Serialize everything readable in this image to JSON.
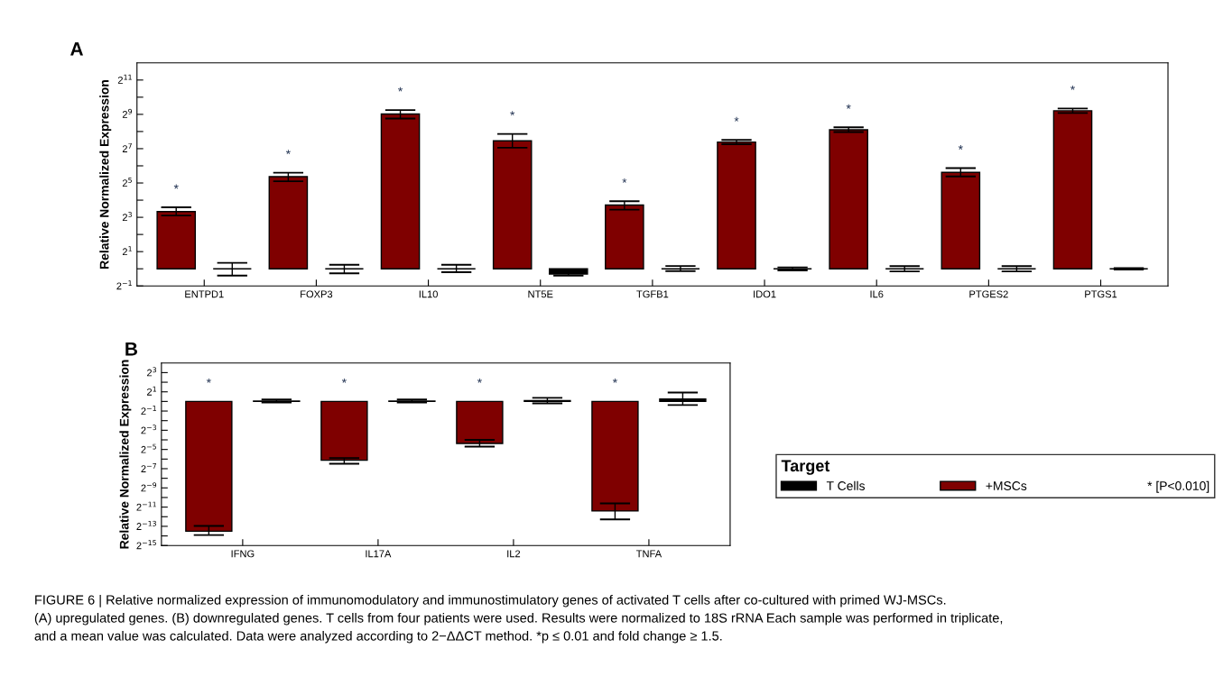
{
  "chart_data": [
    {
      "type": "bar",
      "title": "A",
      "ylabel": "Relative Normalized Expression",
      "log": true,
      "grid": false,
      "categories": [
        "ENTPD1",
        "FOXP3",
        "IL10",
        "NT5E",
        "TGFB1",
        "IDO1",
        "IL6",
        "PTGES2",
        "PTGS1"
      ],
      "ylim": [
        0.5,
        4096
      ],
      "yticks": [
        {
          "value": 0.5,
          "label": "2$^{−1}$"
        },
        {
          "value": 1,
          "label": null
        },
        {
          "value": 2,
          "label": "2$^{1}$"
        },
        {
          "value": 4,
          "label": null
        },
        {
          "value": 8,
          "label": "2$^{3}$"
        },
        {
          "value": 16,
          "label": null
        },
        {
          "value": 32,
          "label": "2$^{5}$"
        },
        {
          "value": 64,
          "label": null
        },
        {
          "value": 128,
          "label": "2$^{7}$"
        },
        {
          "value": 256,
          "label": null
        },
        {
          "value": 512,
          "label": "2$^{9}$"
        },
        {
          "value": 1024,
          "label": null
        },
        {
          "value": 2048,
          "label": "2$^{11}$"
        }
      ],
      "series": [
        {
          "color": "#7f0000",
          "base": [
            1,
            1,
            1,
            1,
            1,
            1,
            1,
            1,
            1
          ],
          "values": [
            9.1,
            40.4,
            518,
            175,
            12.1,
            166,
            273,
            48.2,
            591
          ],
          "errors": [
            [
              8.6,
              12.0
            ],
            [
              34.3,
              48.5
            ],
            [
              431,
              609
            ],
            [
              133,
              232
            ],
            [
              10.9,
              15.3
            ],
            [
              153,
              182
            ],
            [
              251,
              304
            ],
            [
              41.6,
              58.5
            ],
            [
              541,
              648
            ]
          ]
        },
        {
          "color": "#000000",
          "base": [
            1,
            1,
            1,
            1,
            1,
            1,
            1,
            1,
            1
          ],
          "values": [
            0,
            0,
            0,
            -0.19,
            0,
            0,
            0,
            0,
            0
          ],
          "errors": [
            [
              0.76,
              1.27
            ],
            [
              0.83,
              1.18
            ],
            [
              0.87,
              1.18
            ],
            [
              0.76,
              0.87
            ],
            [
              0.91,
              1.12
            ],
            [
              0.94,
              1.06
            ],
            [
              0.9,
              1.11
            ],
            [
              0.9,
              1.11
            ],
            [
              0.97,
              1.03
            ]
          ]
        }
      ],
      "annotations": [
        "*",
        "*",
        "*",
        "*",
        "*",
        "*",
        "*",
        "*",
        "*"
      ]
    },
    {
      "type": "bar",
      "title": "B",
      "ylabel": "Relative Normalized Expression",
      "log": true,
      "grid": false,
      "legend": "right",
      "legend_title": "Target",
      "categories": [
        "IFNG",
        "IL17A",
        "IL2",
        "TNFA"
      ],
      "ylim": [
        3.0517578125e-05,
        16
      ],
      "yticks": [
        {
          "value": 3.0517578125e-05,
          "label": "2$^{−15}$"
        },
        {
          "value": 6.103515625e-05,
          "label": null
        },
        {
          "value": 0.0001220703125,
          "label": "2$^{−13}$"
        },
        {
          "value": 0.000244140625,
          "label": null
        },
        {
          "value": 0.00048828125,
          "label": "2$^{−11}$"
        },
        {
          "value": 0.0009765625,
          "label": null
        },
        {
          "value": 0.001953125,
          "label": "2$^{−9}$"
        },
        {
          "value": 0.00390625,
          "label": null
        },
        {
          "value": 0.0078125,
          "label": "2$^{−7}$"
        },
        {
          "value": 0.015625,
          "label": null
        },
        {
          "value": 0.03125,
          "label": "2$^{−5}$"
        },
        {
          "value": 0.0625,
          "label": null
        },
        {
          "value": 0.125,
          "label": "2$^{−3}$"
        },
        {
          "value": 0.25,
          "label": null
        },
        {
          "value": 0.5,
          "label": "2$^{−1}$"
        },
        {
          "value": 1,
          "label": null
        },
        {
          "value": 2,
          "label": "2$^{1}$"
        },
        {
          "value": 4,
          "label": null
        },
        {
          "value": 8,
          "label": "2$^{3}$"
        }
      ],
      "series": [
        {
          "name": "+MSCs",
          "color": "#7f0000",
          "base": [
            1,
            1,
            1,
            1
          ],
          "values": [
            -0.999914,
            -0.9856,
            -0.9516,
            -0.99963
          ],
          "errors": [
            [
              6.5e-05,
              0.000126
            ],
            [
              0.0112,
              0.0167
            ],
            [
              0.0385,
              0.0625
            ],
            [
              0.0002,
              0.00064
            ]
          ]
        },
        {
          "name": "T Cells",
          "color": "#000000",
          "base": [
            1,
            1,
            1,
            1
          ],
          "values": [
            0.03,
            0.03,
            0.07,
            0.2
          ],
          "errors": [
            [
              0.93,
              1.15
            ],
            [
              0.93,
              1.15
            ],
            [
              0.87,
              1.3
            ],
            [
              0.77,
              1.9
            ]
          ]
        }
      ],
      "annotations": [
        "*",
        "*",
        "*",
        "*",
        "* [P<0.010]",
        "FIGURE 6 | Relative normalized expression of immunomodulatory and immunostimulatory genes of activated T cells after co-cultured with primed WJ-MSCs.\n(A) upregulated genes. (B) downregulated genes. T cells from four patients were used. Results were normalized to 18S rRNA Each sample was performed in triplicate,\nand a mean value was calculated. Data were analyzed according to 2−ΔΔCT method. *p ≤ 0.01 and fold change ≥ 1.5."
      ]
    }
  ]
}
